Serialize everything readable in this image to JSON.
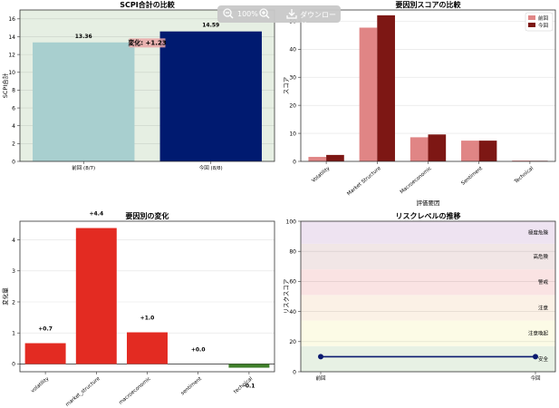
{
  "chart_data": [
    {
      "id": "c1",
      "type": "bar",
      "title": "SCPI合計の比較",
      "ylabel": "SCPI合計",
      "xlabel": "",
      "categories": [
        "前回 (8/7)",
        "今回 (8/8)"
      ],
      "values": [
        13.36,
        14.59
      ],
      "value_labels": [
        "13.36",
        "14.59"
      ],
      "colors": [
        "#a8cfcf",
        "#001a70"
      ],
      "ylim": [
        0,
        17
      ],
      "yticks": [
        "0",
        "2",
        "4",
        "6",
        "8",
        "10",
        "12",
        "14",
        "16"
      ],
      "annotation": "変化: +1.23",
      "background": "#e6efe3",
      "grid": true
    },
    {
      "id": "c2",
      "type": "bar",
      "title": "要因別スコアの比較",
      "ylabel": "スコア",
      "xlabel": "評価要因",
      "categories": [
        "Volatility",
        "Market Structure",
        "Macroeconomic",
        "Sentiment",
        "Technical"
      ],
      "series": [
        {
          "name": "前回",
          "values": [
            1.6,
            47.7,
            8.6,
            7.4,
            0.3
          ],
          "color": "#e08585"
        },
        {
          "name": "今回",
          "values": [
            2.3,
            52.1,
            9.6,
            7.4,
            0.2
          ],
          "color": "#7d1714"
        }
      ],
      "ylim": [
        0,
        54
      ],
      "yticks": [
        "0",
        "10",
        "20",
        "30",
        "40",
        "50"
      ],
      "legend_position": "top-right",
      "grid": true
    },
    {
      "id": "c3",
      "type": "bar",
      "title": "要因別の変化",
      "ylabel": "変化量",
      "xlabel": "",
      "categories": [
        "volatility",
        "market_structure",
        "macroeconomic",
        "sentiment",
        "technical"
      ],
      "values": [
        0.67,
        4.38,
        1.02,
        0.0,
        -0.12
      ],
      "value_labels": [
        "+0.7",
        "+4.4",
        "+1.0",
        "+0.0",
        "-0.1"
      ],
      "positive_color": "#e32b22",
      "negative_color": "#3f7f2a",
      "ylim": [
        -0.25,
        4.6
      ],
      "yticks": [
        "0",
        "1",
        "2",
        "3",
        "4"
      ],
      "grid": true
    },
    {
      "id": "c4",
      "type": "line",
      "title": "リスクレベルの推移",
      "ylabel": "リスクスコア",
      "xlabel": "",
      "categories": [
        "前回",
        "今回"
      ],
      "series": [
        {
          "values": [
            10,
            10
          ],
          "color": "#0a1a70"
        }
      ],
      "ylim": [
        0,
        100
      ],
      "yticks": [
        "0",
        "20",
        "40",
        "60",
        "80",
        "100"
      ],
      "bands": [
        {
          "from": 0,
          "to": 17,
          "label": "安全",
          "color": "#e7f1e4"
        },
        {
          "from": 17,
          "to": 34,
          "label": "注意喚起",
          "color": "#fcfbe6"
        },
        {
          "from": 34,
          "to": 51,
          "label": "注意",
          "color": "#fbf1e6"
        },
        {
          "from": 51,
          "to": 68,
          "label": "警戒",
          "color": "#fae3e3"
        },
        {
          "from": 68,
          "to": 85,
          "label": "高危険",
          "color": "#f1e6e6"
        },
        {
          "from": 85,
          "to": 100,
          "label": "極度危険",
          "color": "#eee3f1"
        }
      ],
      "grid": true
    }
  ],
  "toolbar": {
    "zoom_level": "100%",
    "download_label": "ダウンロード",
    "zoom_out_icon": "zoom-out-icon",
    "zoom_in_icon": "zoom-in-icon",
    "download_icon": "download-icon"
  }
}
